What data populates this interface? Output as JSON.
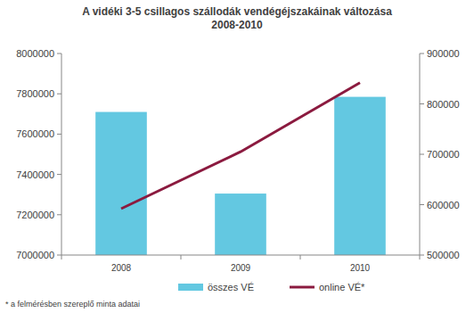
{
  "chart_data": {
    "type": "bar",
    "title": "A vidéki 3-5 csillagos szállodák vendégéjszakáinak változása",
    "subtitle": "2008-2010",
    "categories": [
      "2008",
      "2009",
      "2010"
    ],
    "series": [
      {
        "name": "összes VÉ",
        "type": "bar",
        "color": "#63c8e1",
        "values": [
          7710000,
          7305000,
          7785000
        ]
      },
      {
        "name": "online VÉ*",
        "type": "line",
        "color": "#8b1a3f",
        "axis": "y2",
        "values": [
          592000,
          705000,
          842000
        ]
      }
    ],
    "ylim": [
      7000000,
      8000000
    ],
    "yticks": [
      7000000,
      7200000,
      7400000,
      7600000,
      7800000,
      8000000
    ],
    "y2lim": [
      500000,
      900000
    ],
    "y2ticks": [
      500000,
      600000,
      700000,
      800000,
      900000
    ],
    "grid": false,
    "legend": "bottom",
    "annotations": [
      "* a felmérésben szereplő minta adatai"
    ]
  }
}
